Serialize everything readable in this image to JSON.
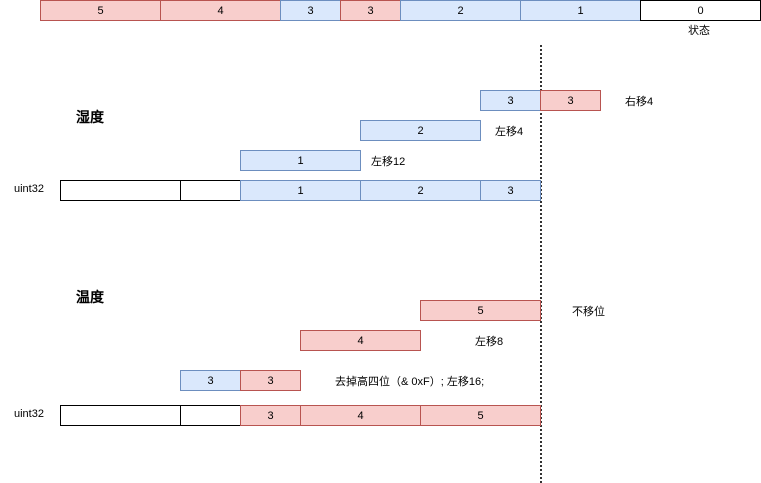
{
  "top_bar": {
    "cells": [
      "5",
      "4",
      "3",
      "3",
      "2",
      "1",
      "0"
    ],
    "status_label": "状态"
  },
  "humidity": {
    "title": "湿度",
    "row_a": {
      "values": [
        "3",
        "3"
      ],
      "note": "右移4"
    },
    "row_b": {
      "value": "2",
      "note": "左移4"
    },
    "row_c": {
      "value": "1",
      "note": "左移12"
    },
    "uint_label": "uint32",
    "uint_cells": [
      "",
      "",
      "1",
      "2",
      "3"
    ]
  },
  "temperature": {
    "title": "温度",
    "row_a": {
      "value": "5",
      "note": "不移位"
    },
    "row_b": {
      "value": "4",
      "note": "左移8"
    },
    "row_c": {
      "values": [
        "3",
        "3"
      ],
      "note": "去掉高四位（& 0xF）; 左移16;"
    },
    "uint_label": "uint32",
    "uint_cells": [
      "",
      "",
      "3",
      "4",
      "5"
    ]
  }
}
